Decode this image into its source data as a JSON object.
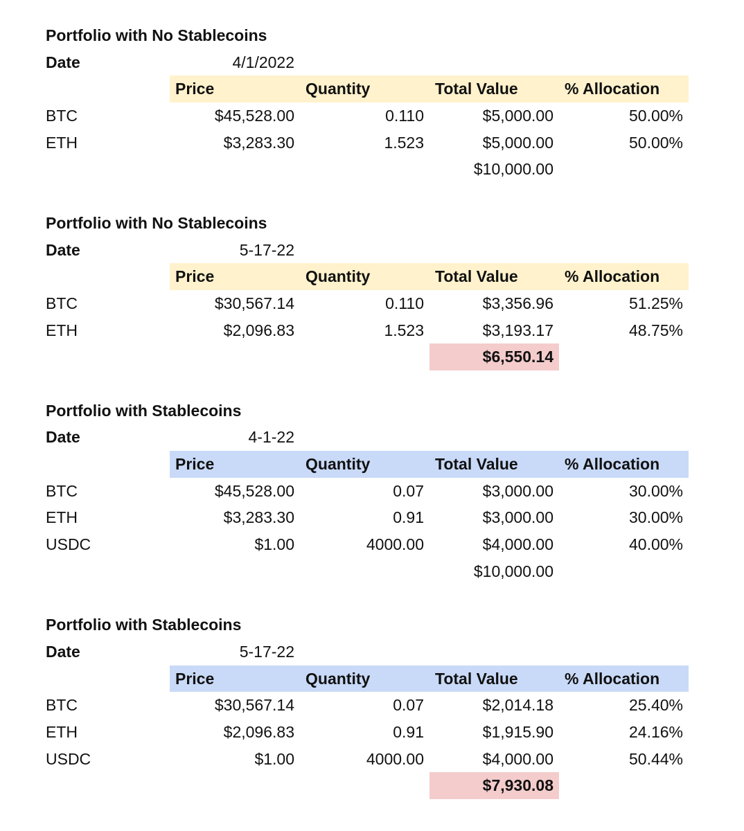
{
  "headers": {
    "price": "Price",
    "quantity": "Quantity",
    "total_value": "Total Value",
    "allocation": "% Allocation"
  },
  "sections": [
    {
      "title": "Portfolio with No Stablecoins",
      "date_label": "Date",
      "date": "4/1/2022",
      "header_color": "#fff2cc",
      "rows": [
        {
          "asset": "BTC",
          "price": "$45,528.00",
          "quantity": "0.110",
          "total_value": "$5,000.00",
          "allocation": "50.00%"
        },
        {
          "asset": "ETH",
          "price": "$3,283.30",
          "quantity": "1.523",
          "total_value": "$5,000.00",
          "allocation": "50.00%"
        }
      ],
      "total": "$10,000.00",
      "total_highlighted": false
    },
    {
      "title": "Portfolio with No Stablecoins",
      "date_label": "Date",
      "date": "5-17-22",
      "header_color": "#fff2cc",
      "rows": [
        {
          "asset": "BTC",
          "price": "$30,567.14",
          "quantity": "0.110",
          "total_value": "$3,356.96",
          "allocation": "51.25%"
        },
        {
          "asset": "ETH",
          "price": "$2,096.83",
          "quantity": "1.523",
          "total_value": "$3,193.17",
          "allocation": "48.75%"
        }
      ],
      "total": "$6,550.14",
      "total_highlighted": true
    },
    {
      "title": "Portfolio with Stablecoins",
      "date_label": "Date",
      "date": "4-1-22",
      "header_color": "#c9daf8",
      "rows": [
        {
          "asset": "BTC",
          "price": "$45,528.00",
          "quantity": "0.07",
          "total_value": "$3,000.00",
          "allocation": "30.00%"
        },
        {
          "asset": "ETH",
          "price": "$3,283.30",
          "quantity": "0.91",
          "total_value": "$3,000.00",
          "allocation": "30.00%"
        },
        {
          "asset": "USDC",
          "price": "$1.00",
          "quantity": "4000.00",
          "total_value": "$4,000.00",
          "allocation": "40.00%"
        }
      ],
      "total": "$10,000.00",
      "total_highlighted": false
    },
    {
      "title": "Portfolio with Stablecoins",
      "date_label": "Date",
      "date": "5-17-22",
      "header_color": "#c9daf8",
      "rows": [
        {
          "asset": "BTC",
          "price": "$30,567.14",
          "quantity": "0.07",
          "total_value": "$2,014.18",
          "allocation": "25.40%"
        },
        {
          "asset": "ETH",
          "price": "$2,096.83",
          "quantity": "0.91",
          "total_value": "$1,915.90",
          "allocation": "24.16%"
        },
        {
          "asset": "USDC",
          "price": "$1.00",
          "quantity": "4000.00",
          "total_value": "$4,000.00",
          "allocation": "50.44%"
        }
      ],
      "total": "$7,930.08",
      "total_highlighted": true
    }
  ],
  "highlight_color": "#f4cccc"
}
